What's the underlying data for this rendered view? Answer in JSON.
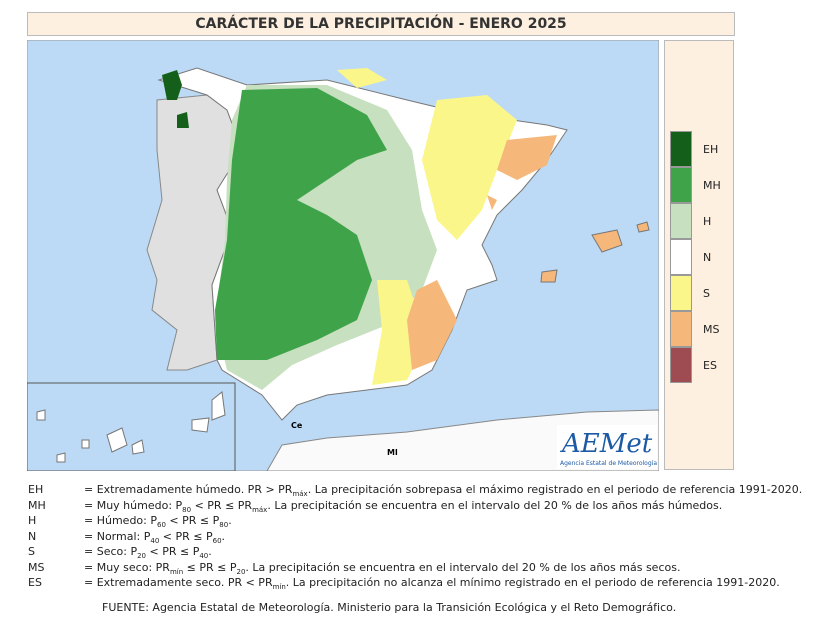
{
  "title": "CARÁCTER DE LA PRECIPITACIÓN - ENERO 2025",
  "legend": [
    {
      "code": "EH",
      "color": "#14601a"
    },
    {
      "code": "MH",
      "color": "#3fa34a"
    },
    {
      "code": "H",
      "color": "#c7e0bf"
    },
    {
      "code": "N",
      "color": "#ffffff"
    },
    {
      "code": "S",
      "color": "#fbf68a"
    },
    {
      "code": "MS",
      "color": "#f5b77a"
    },
    {
      "code": "ES",
      "color": "#9e4b51"
    }
  ],
  "map_labels": {
    "ceuta": "Ce",
    "melilla": "Ml"
  },
  "logo": {
    "name": "AEMet",
    "subtitle": "Agencia Estatal de Meteorología"
  },
  "definitions": [
    {
      "code": "EH",
      "parts": [
        {
          "text": "= Extremadamente húmedo. PR > PR"
        },
        {
          "sub": "máx"
        },
        {
          "text": ". La precipitación sobrepasa el máximo registrado en el periodo de referencia 1991-2020."
        }
      ]
    },
    {
      "code": "MH",
      "parts": [
        {
          "text": "= Muy húmedo: P"
        },
        {
          "sub": "80"
        },
        {
          "text": " < PR ≤ PR"
        },
        {
          "sub": "máx"
        },
        {
          "text": ". La precipitación se encuentra en el intervalo del 20 % de los años más húmedos."
        }
      ]
    },
    {
      "code": "H",
      "parts": [
        {
          "text": "= Húmedo: P"
        },
        {
          "sub": "60"
        },
        {
          "text": " < PR ≤ P"
        },
        {
          "sub": "80"
        },
        {
          "text": "."
        }
      ]
    },
    {
      "code": "N",
      "parts": [
        {
          "text": "= Normal: P"
        },
        {
          "sub": "40"
        },
        {
          "text": " < PR ≤ P"
        },
        {
          "sub": "60"
        },
        {
          "text": "."
        }
      ]
    },
    {
      "code": "S",
      "parts": [
        {
          "text": "= Seco: P"
        },
        {
          "sub": "20"
        },
        {
          "text": " < PR ≤ P"
        },
        {
          "sub": "40"
        },
        {
          "text": "."
        }
      ]
    },
    {
      "code": "MS",
      "parts": [
        {
          "text": "= Muy seco: PR"
        },
        {
          "sub": "mín"
        },
        {
          "text": " ≤ PR ≤ P"
        },
        {
          "sub": "20"
        },
        {
          "text": ". La precipitación se encuentra en el intervalo del 20 % de los años más secos."
        }
      ]
    },
    {
      "code": "ES",
      "parts": [
        {
          "text": "= Extremadamente seco. PR < PR"
        },
        {
          "sub": "mín"
        },
        {
          "text": ". La precipitación no alcanza el mínimo registrado en el periodo de referencia 1991-2020."
        }
      ]
    }
  ],
  "source": "FUENTE: Agencia Estatal de Meteorología. Ministerio para la Transición Ecológica y el Reto Demográfico."
}
